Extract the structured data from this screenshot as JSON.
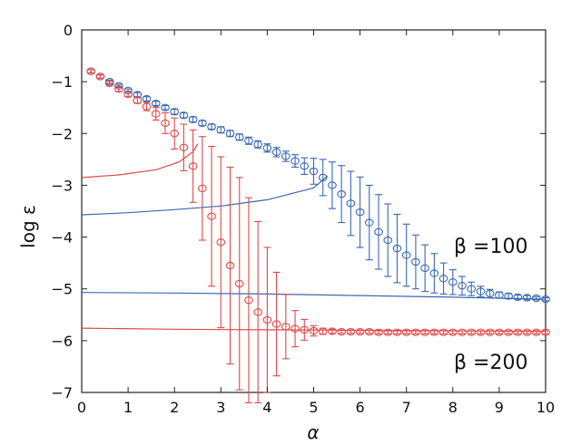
{
  "chart_data": {
    "type": "scatter",
    "title": "",
    "xlabel": "α",
    "ylabel": "log ε",
    "xlim": [
      0,
      10
    ],
    "ylim": [
      -7,
      0
    ],
    "xticks": [
      "0",
      "1",
      "2",
      "3",
      "4",
      "5",
      "6",
      "7",
      "8",
      "9",
      "10"
    ],
    "yticks": [
      "0",
      "−1",
      "−2",
      "−3",
      "−4",
      "−5",
      "−6",
      "−7"
    ],
    "grid": false,
    "annotations": [
      {
        "text": "β =100",
        "at": [
          8.1,
          -4.2
        ]
      },
      {
        "text": "β =200",
        "at": [
          8.1,
          -6.4
        ]
      }
    ],
    "series": [
      {
        "name": "β =100",
        "color": "#3a68b3",
        "x": [
          0.2,
          0.4,
          0.6,
          0.8,
          1.0,
          1.2,
          1.4,
          1.6,
          1.8,
          2.0,
          2.2,
          2.4,
          2.6,
          2.8,
          3.0,
          3.2,
          3.4,
          3.6,
          3.8,
          4.0,
          4.2,
          4.4,
          4.6,
          4.8,
          5.0,
          5.2,
          5.4,
          5.6,
          5.8,
          6.0,
          6.2,
          6.4,
          6.6,
          6.8,
          7.0,
          7.2,
          7.4,
          7.6,
          7.8,
          8.0,
          8.2,
          8.4,
          8.6,
          8.8,
          9.0,
          9.2,
          9.4,
          9.6,
          9.8,
          10.0
        ],
        "y": [
          -0.8,
          -0.9,
          -1.0,
          -1.08,
          -1.17,
          -1.25,
          -1.33,
          -1.42,
          -1.5,
          -1.58,
          -1.65,
          -1.73,
          -1.8,
          -1.87,
          -1.93,
          -2.0,
          -2.07,
          -2.14,
          -2.21,
          -2.28,
          -2.36,
          -2.44,
          -2.53,
          -2.63,
          -2.73,
          -2.85,
          -3.0,
          -3.17,
          -3.35,
          -3.52,
          -3.72,
          -3.9,
          -4.06,
          -4.22,
          -4.35,
          -4.48,
          -4.6,
          -4.7,
          -4.8,
          -4.87,
          -4.94,
          -5.0,
          -5.05,
          -5.09,
          -5.12,
          -5.14,
          -5.16,
          -5.17,
          -5.18,
          -5.2
        ],
        "err": [
          0.03,
          0.03,
          0.03,
          0.03,
          0.03,
          0.04,
          0.04,
          0.04,
          0.04,
          0.05,
          0.05,
          0.05,
          0.05,
          0.05,
          0.06,
          0.06,
          0.06,
          0.07,
          0.07,
          0.08,
          0.09,
          0.1,
          0.12,
          0.16,
          0.25,
          0.35,
          0.45,
          0.55,
          0.62,
          0.68,
          0.72,
          0.72,
          0.7,
          0.66,
          0.6,
          0.52,
          0.45,
          0.38,
          0.3,
          0.24,
          0.18,
          0.13,
          0.1,
          0.08,
          0.06,
          0.05,
          0.04,
          0.04,
          0.03,
          0.03
        ],
        "curves": [
          {
            "x": [
              0,
              1,
              2,
              3,
              4,
              5,
              5.3
            ],
            "y": [
              -3.57,
              -3.53,
              -3.47,
              -3.4,
              -3.28,
              -3.05,
              -2.82
            ]
          },
          {
            "x": [
              0,
              2,
              4,
              6,
              8,
              10
            ],
            "y": [
              -5.07,
              -5.08,
              -5.1,
              -5.13,
              -5.16,
              -5.2
            ]
          }
        ]
      },
      {
        "name": "β =200",
        "color": "#e04848",
        "x": [
          0.2,
          0.4,
          0.6,
          0.8,
          1.0,
          1.2,
          1.4,
          1.6,
          1.8,
          2.0,
          2.2,
          2.4,
          2.6,
          2.8,
          3.0,
          3.2,
          3.4,
          3.6,
          3.8,
          4.0,
          4.2,
          4.4,
          4.6,
          4.8,
          5.0,
          5.2,
          5.4,
          5.6,
          5.8,
          6.0,
          6.2,
          6.4,
          6.6,
          6.8,
          7.0,
          7.2,
          7.4,
          7.6,
          7.8,
          8.0,
          8.2,
          8.4,
          8.6,
          8.8,
          9.0,
          9.2,
          9.4,
          9.6,
          9.8,
          10.0
        ],
        "y": [
          -0.8,
          -0.9,
          -1.03,
          -1.14,
          -1.24,
          -1.36,
          -1.48,
          -1.62,
          -1.8,
          -2.0,
          -2.27,
          -2.63,
          -3.06,
          -3.6,
          -4.1,
          -4.55,
          -4.9,
          -5.22,
          -5.45,
          -5.6,
          -5.68,
          -5.73,
          -5.77,
          -5.79,
          -5.81,
          -5.82,
          -5.82,
          -5.83,
          -5.83,
          -5.83,
          -5.83,
          -5.84,
          -5.84,
          -5.84,
          -5.84,
          -5.84,
          -5.84,
          -5.84,
          -5.84,
          -5.84,
          -5.84,
          -5.84,
          -5.84,
          -5.84,
          -5.84,
          -5.84,
          -5.84,
          -5.84,
          -5.84,
          -5.84
        ],
        "err": [
          0.03,
          0.03,
          0.04,
          0.05,
          0.05,
          0.06,
          0.08,
          0.12,
          0.2,
          0.3,
          0.45,
          0.7,
          1.0,
          1.35,
          1.65,
          1.9,
          2.05,
          1.98,
          1.75,
          1.4,
          1.0,
          0.62,
          0.35,
          0.2,
          0.1,
          0.06,
          0.04,
          0.03,
          0.03,
          0.03,
          0.03,
          0.03,
          0.03,
          0.03,
          0.03,
          0.03,
          0.03,
          0.03,
          0.03,
          0.03,
          0.03,
          0.03,
          0.03,
          0.03,
          0.03,
          0.03,
          0.03,
          0.03,
          0.03,
          0.03
        ],
        "curves": [
          {
            "x": [
              0,
              0.8,
              1.6,
              2.1,
              2.4,
              2.5
            ],
            "y": [
              -2.85,
              -2.8,
              -2.7,
              -2.55,
              -2.35,
              -2.2
            ]
          },
          {
            "x": [
              0,
              2,
              4,
              6,
              8,
              10
            ],
            "y": [
              -5.76,
              -5.78,
              -5.79,
              -5.8,
              -5.81,
              -5.82
            ]
          }
        ]
      }
    ]
  }
}
